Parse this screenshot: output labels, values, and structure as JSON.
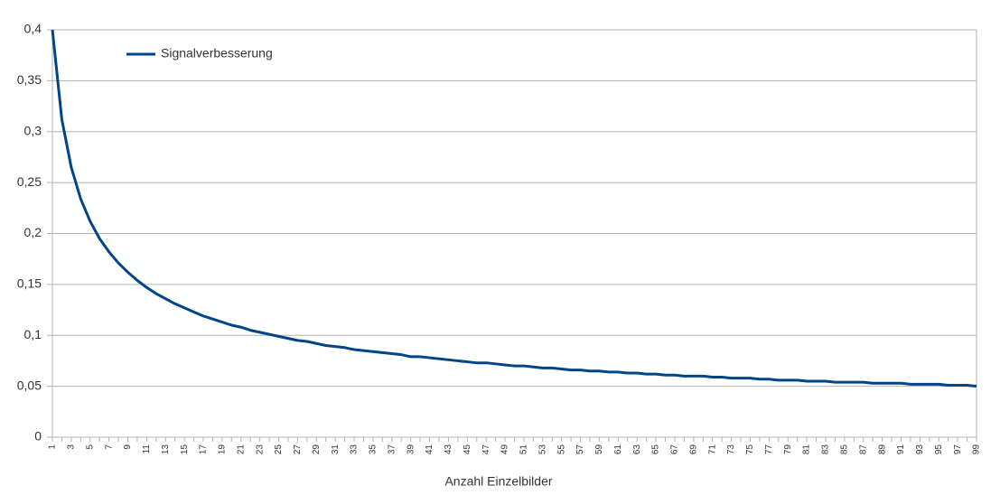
{
  "chart_data": {
    "type": "line",
    "x_label": "Anzahl Einzelbilder",
    "categories": [
      "1",
      null,
      "3",
      null,
      "5",
      null,
      "7",
      null,
      "9",
      null,
      "11",
      null,
      "13",
      null,
      "15",
      null,
      "17",
      null,
      "19",
      null,
      "21",
      null,
      "23",
      null,
      "25",
      null,
      "27",
      null,
      "29",
      null,
      "31",
      null,
      "33",
      null,
      "35",
      null,
      "37",
      null,
      "39",
      null,
      "41",
      null,
      "43",
      null,
      "45",
      null,
      "47",
      null,
      "49",
      null,
      "51",
      null,
      "53",
      null,
      "55",
      null,
      "57",
      null,
      "59",
      null,
      "61",
      null,
      "63",
      null,
      "65",
      null,
      "67",
      null,
      "69",
      null,
      "71",
      null,
      "73",
      null,
      "75",
      null,
      "77",
      null,
      "79",
      null,
      "81",
      null,
      "83",
      null,
      "85",
      null,
      "87",
      null,
      "89",
      null,
      "91",
      null,
      "93",
      null,
      "95",
      null,
      "97",
      null,
      "99"
    ],
    "series": [
      {
        "name": "Signalverbesserung",
        "color": "#004586",
        "values": [
          0.4,
          0.312,
          0.265,
          0.234,
          0.212,
          0.195,
          0.182,
          0.171,
          0.162,
          0.154,
          0.147,
          0.141,
          0.136,
          0.131,
          0.127,
          0.123,
          0.119,
          0.116,
          0.113,
          0.11,
          0.108,
          0.105,
          0.103,
          0.101,
          0.099,
          0.097,
          0.095,
          0.094,
          0.092,
          0.09,
          0.089,
          0.088,
          0.086,
          0.085,
          0.084,
          0.083,
          0.082,
          0.081,
          0.079,
          0.079,
          0.078,
          0.077,
          0.076,
          0.075,
          0.074,
          0.073,
          0.073,
          0.072,
          0.071,
          0.07,
          0.07,
          0.069,
          0.068,
          0.068,
          0.067,
          0.066,
          0.066,
          0.065,
          0.065,
          0.064,
          0.064,
          0.063,
          0.063,
          0.062,
          0.062,
          0.061,
          0.061,
          0.06,
          0.06,
          0.06,
          0.059,
          0.059,
          0.058,
          0.058,
          0.058,
          0.057,
          0.057,
          0.056,
          0.056,
          0.056,
          0.055,
          0.055,
          0.055,
          0.054,
          0.054,
          0.054,
          0.054,
          0.053,
          0.053,
          0.053,
          0.053,
          0.052,
          0.052,
          0.052,
          0.052,
          0.051,
          0.051,
          0.051,
          0.05
        ]
      }
    ],
    "ylim": [
      0,
      0.4
    ],
    "yticks": [
      0,
      {
        "value": 0.05,
        "label": "0,05"
      },
      {
        "value": 0.1,
        "label": "0,1"
      },
      {
        "value": 0.15,
        "label": "0,15"
      },
      {
        "value": 0.2,
        "label": "0,2"
      },
      {
        "value": 0.25,
        "label": "0,25"
      },
      {
        "value": 0.3,
        "label": "0,3"
      },
      {
        "value": 0.35,
        "label": "0,35"
      },
      {
        "value": 0.4,
        "label": "0,4"
      }
    ],
    "grid": true,
    "legend": "top-left"
  }
}
